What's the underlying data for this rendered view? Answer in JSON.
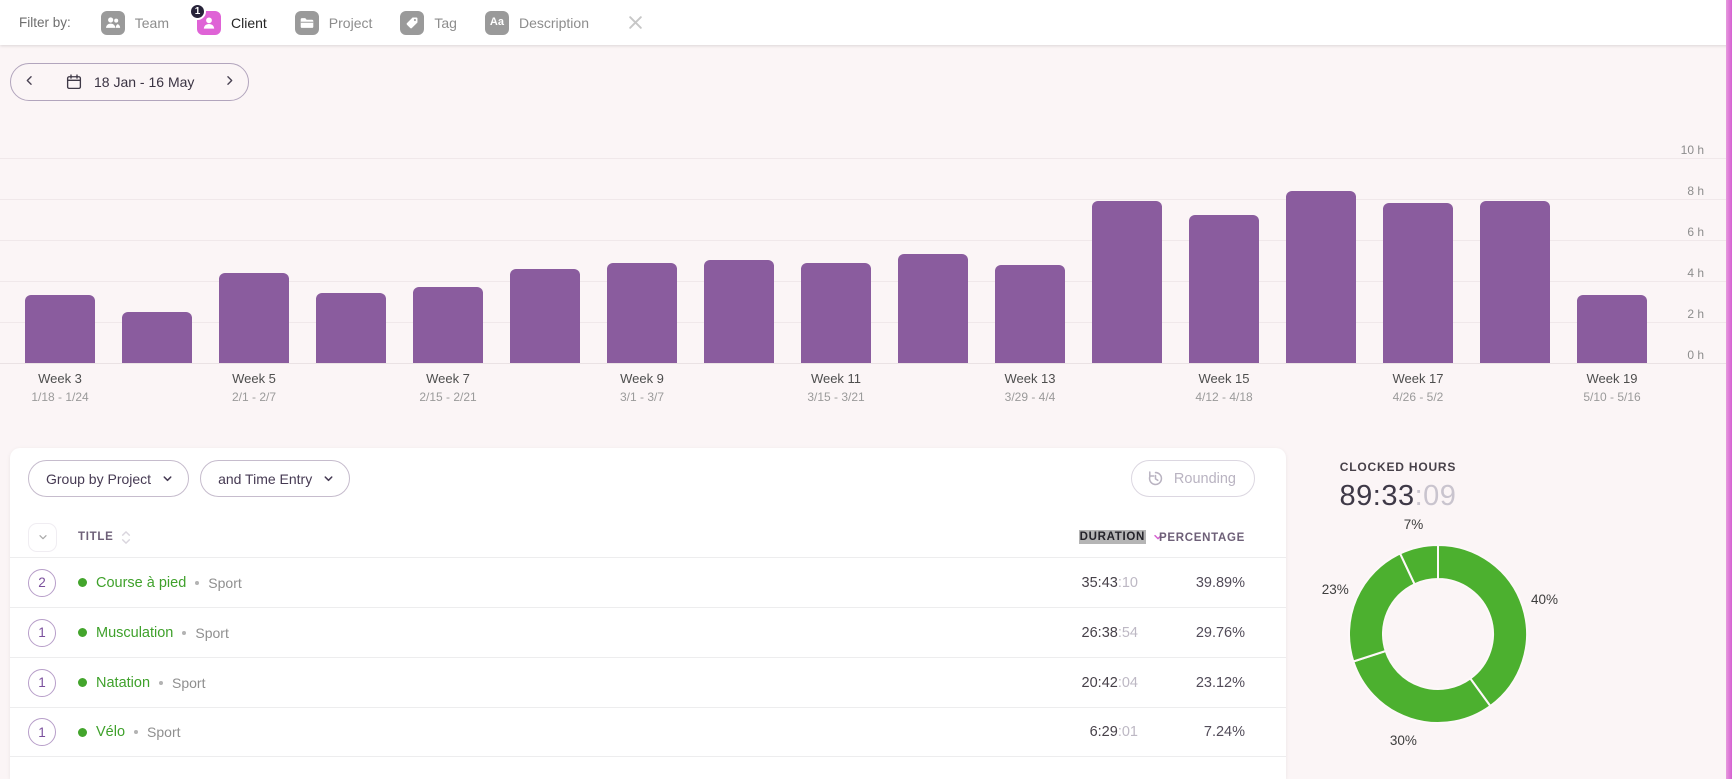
{
  "colors": {
    "bar": "#8a5c9e",
    "donut_green": "#4cb02f",
    "project_green": "#3fa12b",
    "accent_pink": "#df63d6",
    "edge_pink": "#d45fd0"
  },
  "filter_bar": {
    "label": "Filter by:",
    "filters": [
      {
        "label": "Team",
        "icon": "team-icon",
        "active": false,
        "badge": ""
      },
      {
        "label": "Client",
        "icon": "client-icon",
        "active": true,
        "badge": "1"
      },
      {
        "label": "Project",
        "icon": "project-icon",
        "active": false,
        "badge": ""
      },
      {
        "label": "Tag",
        "icon": "tag-icon",
        "active": false,
        "badge": ""
      },
      {
        "label": "Description",
        "icon": "description-icon",
        "active": false,
        "badge": ""
      }
    ]
  },
  "date_nav": {
    "range": "18 Jan - 16 May"
  },
  "chart_data": [
    {
      "type": "bar",
      "title": "Tracked time per week",
      "ylabel": "hours",
      "ylim": [
        0,
        10
      ],
      "yticks": [
        "0 h",
        "2 h",
        "4 h",
        "6 h",
        "8 h",
        "10 h"
      ],
      "grid": true,
      "bar_color": "#8a5c9e",
      "weeks": [
        {
          "label": "Week 3",
          "dates": "1/18 - 1/24",
          "hours": 3.3
        },
        {
          "label": "",
          "dates": "",
          "hours": 2.5
        },
        {
          "label": "Week 5",
          "dates": "2/1 - 2/7",
          "hours": 4.4
        },
        {
          "label": "",
          "dates": "",
          "hours": 3.4
        },
        {
          "label": "Week 7",
          "dates": "2/15 - 2/21",
          "hours": 3.7
        },
        {
          "label": "",
          "dates": "",
          "hours": 4.6
        },
        {
          "label": "Week 9",
          "dates": "3/1 - 3/7",
          "hours": 4.9
        },
        {
          "label": "",
          "dates": "",
          "hours": 5.0
        },
        {
          "label": "Week 11",
          "dates": "3/15 - 3/21",
          "hours": 4.9
        },
        {
          "label": "",
          "dates": "",
          "hours": 5.3
        },
        {
          "label": "Week 13",
          "dates": "3/29 - 4/4",
          "hours": 4.8
        },
        {
          "label": "",
          "dates": "",
          "hours": 7.9
        },
        {
          "label": "Week 15",
          "dates": "4/12 - 4/18",
          "hours": 7.2
        },
        {
          "label": "",
          "dates": "",
          "hours": 8.4
        },
        {
          "label": "Week 17",
          "dates": "4/26 - 5/2",
          "hours": 7.8
        },
        {
          "label": "",
          "dates": "",
          "hours": 7.9
        },
        {
          "label": "Week 19",
          "dates": "5/10 - 5/16",
          "hours": 3.3
        }
      ]
    },
    {
      "type": "pie",
      "donut": true,
      "color": "#4cb02f",
      "start": "top",
      "direction": "clockwise",
      "slices": [
        {
          "label": "40%",
          "value": 40
        },
        {
          "label": "30%",
          "value": 30
        },
        {
          "label": "23%",
          "value": 23
        },
        {
          "label": "7%",
          "value": 7
        }
      ]
    }
  ],
  "table": {
    "group_by": {
      "label": "Group by Project"
    },
    "sub_group": {
      "label": "and Time Entry"
    },
    "rounding": {
      "label": "Rounding",
      "disabled": true
    },
    "columns": {
      "title": "TITLE",
      "duration": "DURATION",
      "percentage": "PERCENTAGE"
    },
    "rows": [
      {
        "count": "2",
        "project": "Course à pied",
        "client": "Sport",
        "duration_hm": "35:43",
        "duration_s": ":10",
        "percentage": "39.89%"
      },
      {
        "count": "1",
        "project": "Musculation",
        "client": "Sport",
        "duration_hm": "26:38",
        "duration_s": ":54",
        "percentage": "29.76%"
      },
      {
        "count": "1",
        "project": "Natation",
        "client": "Sport",
        "duration_hm": "20:42",
        "duration_s": ":04",
        "percentage": "23.12%"
      },
      {
        "count": "1",
        "project": "Vélo",
        "client": "Sport",
        "duration_hm": "6:29",
        "duration_s": ":01",
        "percentage": "7.24%"
      }
    ]
  },
  "summary": {
    "clocked_label": "CLOCKED HOURS",
    "clocked_hm": "89:33",
    "clocked_s": ":09"
  }
}
